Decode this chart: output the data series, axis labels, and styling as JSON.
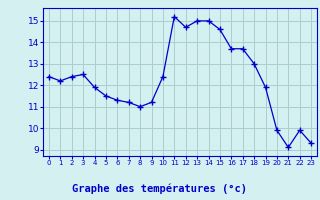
{
  "x": [
    0,
    1,
    2,
    3,
    4,
    5,
    6,
    7,
    8,
    9,
    10,
    11,
    12,
    13,
    14,
    15,
    16,
    17,
    18,
    19,
    20,
    21,
    22,
    23
  ],
  "y": [
    12.4,
    12.2,
    12.4,
    12.5,
    11.9,
    11.5,
    11.3,
    11.2,
    11.0,
    11.2,
    12.4,
    15.2,
    14.7,
    15.0,
    15.0,
    14.6,
    13.7,
    13.7,
    13.0,
    11.9,
    9.9,
    9.1,
    9.9,
    9.3
  ],
  "line_color": "#0000cc",
  "marker": "+",
  "marker_size": 4,
  "bg_color": "#d4f0f0",
  "grid_color": "#aacece",
  "tick_color": "#0000cc",
  "xlabel": "Graphe des températures (°c)",
  "ylim": [
    8.7,
    15.6
  ],
  "yticks": [
    9,
    10,
    11,
    12,
    13,
    14,
    15
  ],
  "xlim": [
    -0.5,
    23.5
  ],
  "xticks": [
    0,
    1,
    2,
    3,
    4,
    5,
    6,
    7,
    8,
    9,
    10,
    11,
    12,
    13,
    14,
    15,
    16,
    17,
    18,
    19,
    20,
    21,
    22,
    23
  ],
  "xtick_labels": [
    "0",
    "1",
    "2",
    "3",
    "4",
    "5",
    "6",
    "7",
    "8",
    "9",
    "10",
    "11",
    "12",
    "13",
    "14",
    "15",
    "16",
    "17",
    "18",
    "19",
    "20",
    "21",
    "22",
    "23"
  ],
  "xlabel_bg": "#d4f0f0",
  "xlabel_color": "#0000cc"
}
